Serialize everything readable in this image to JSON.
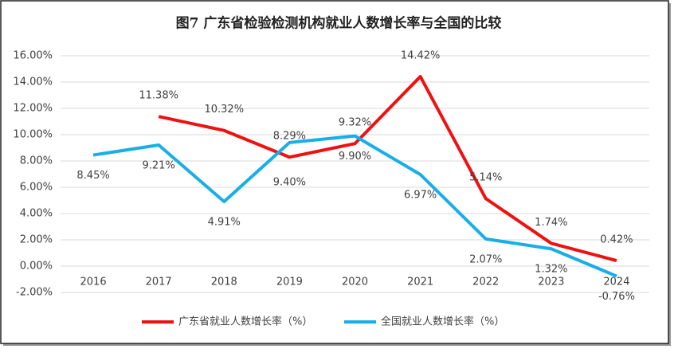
{
  "chart_data": {
    "type": "line",
    "title": "图7  广东省检验检测机构就业人数增长率与全国的比较",
    "categories": [
      "2016",
      "2017",
      "2018",
      "2019",
      "2020",
      "2021",
      "2022",
      "2023",
      "2024"
    ],
    "series": [
      {
        "name": "广东省就业人数增长率（%）",
        "color": "#ee1111",
        "values": [
          null,
          11.38,
          10.32,
          8.29,
          9.32,
          14.42,
          5.14,
          1.74,
          0.42
        ],
        "value_labels": [
          null,
          "11.38%",
          "10.32%",
          "8.29%",
          "9.32%",
          "14.42%",
          "5.14%",
          "1.74%",
          "0.42%"
        ]
      },
      {
        "name": "全国就业人数增长率（%）",
        "color": "#18aee6",
        "values": [
          8.45,
          9.21,
          4.91,
          9.4,
          9.9,
          6.97,
          2.07,
          1.32,
          -0.76
        ],
        "value_labels": [
          "8.45%",
          "9.21%",
          "4.91%",
          "9.40%",
          "9.90%",
          "6.97%",
          "2.07%",
          "1.32%",
          "-0.76%"
        ]
      }
    ],
    "ylim": [
      -2,
      16
    ],
    "yticks": [
      {
        "value": -2,
        "label": "-2.00%"
      },
      {
        "value": 0,
        "label": "0.00%"
      },
      {
        "value": 2,
        "label": "2.00%"
      },
      {
        "value": 4,
        "label": "4.00%"
      },
      {
        "value": 6,
        "label": "6.00%"
      },
      {
        "value": 8,
        "label": "8.00%"
      },
      {
        "value": 10,
        "label": "10.00%"
      },
      {
        "value": 12,
        "label": "12.00%"
      },
      {
        "value": 14,
        "label": "14.00%"
      },
      {
        "value": 16,
        "label": "16.00%"
      }
    ],
    "grid": true,
    "legend": "bottom"
  }
}
